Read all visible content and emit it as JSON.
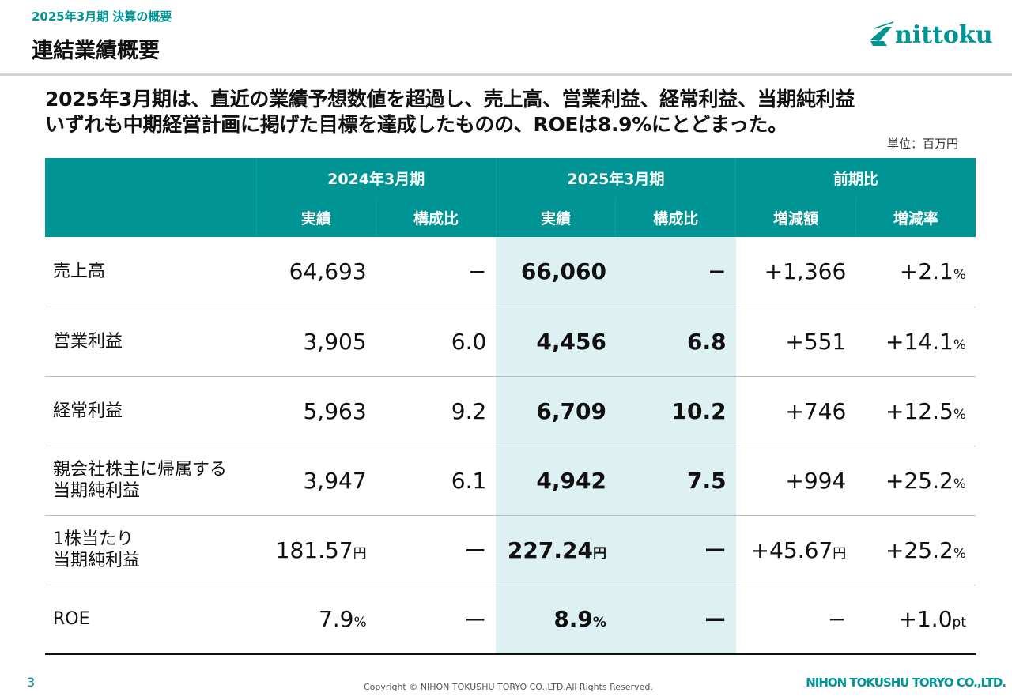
{
  "header": {
    "subtitle": "2025年3月期 決算の概要",
    "title": "連結業績概要",
    "logo_text": "nittoku"
  },
  "lead": [
    "2025年3月期は、直近の業績予想数値を超過し、売上高、営業利益、経常利益、当期純利益",
    "いずれも中期経営計画に掲げた目標を達成したものの、ROEは8.9%にとどまった。"
  ],
  "unit_note": "単位：百万円",
  "table": {
    "groups": [
      "2024年3月期",
      "2025年3月期",
      "前期比"
    ],
    "columns": [
      "実績",
      "構成比",
      "実績",
      "構成比",
      "増減額",
      "増減率"
    ],
    "rows": [
      {
        "label": "売上高",
        "cells": [
          [
            "64,693",
            ""
          ],
          [
            "−",
            ""
          ],
          [
            "66,060",
            ""
          ],
          [
            "−",
            ""
          ],
          [
            "+1,366",
            ""
          ],
          [
            "+2.1",
            "%"
          ]
        ]
      },
      {
        "label": "営業利益",
        "cells": [
          [
            "3,905",
            ""
          ],
          [
            "6.0",
            ""
          ],
          [
            "4,456",
            ""
          ],
          [
            "6.8",
            ""
          ],
          [
            "+551",
            ""
          ],
          [
            "+14.1",
            "%"
          ]
        ]
      },
      {
        "label": "経常利益",
        "cells": [
          [
            "5,963",
            ""
          ],
          [
            "9.2",
            ""
          ],
          [
            "6,709",
            ""
          ],
          [
            "10.2",
            ""
          ],
          [
            "+746",
            ""
          ],
          [
            "+12.5",
            "%"
          ]
        ]
      },
      {
        "label": "親会社株主に帰属する\n当期純利益",
        "cells": [
          [
            "3,947",
            ""
          ],
          [
            "6.1",
            ""
          ],
          [
            "4,942",
            ""
          ],
          [
            "7.5",
            ""
          ],
          [
            "+994",
            ""
          ],
          [
            "+25.2",
            "%"
          ]
        ]
      },
      {
        "label": "1株当たり\n当期純利益",
        "cells": [
          [
            "181.57",
            "円"
          ],
          [
            "ー",
            ""
          ],
          [
            "227.24",
            "円"
          ],
          [
            "ー",
            ""
          ],
          [
            "+45.67",
            "円"
          ],
          [
            "+25.2",
            "%"
          ]
        ]
      },
      {
        "label": "ROE",
        "cells": [
          [
            "7.9",
            "%"
          ],
          [
            "ー",
            ""
          ],
          [
            "8.9",
            "%"
          ],
          [
            "ー",
            ""
          ],
          [
            "−",
            ""
          ],
          [
            "+1.0",
            "pt"
          ]
        ]
      }
    ]
  },
  "footer": {
    "page": "3",
    "copyright": "Copyright © NIHON TOKUSHU TORYO CO.,LTD.All Rights Reserved.",
    "company": "NIHON TOKUSHU TORYO CO.,LTD."
  },
  "colors": {
    "accent": "#009494",
    "highlight": "#ddf0f2"
  }
}
